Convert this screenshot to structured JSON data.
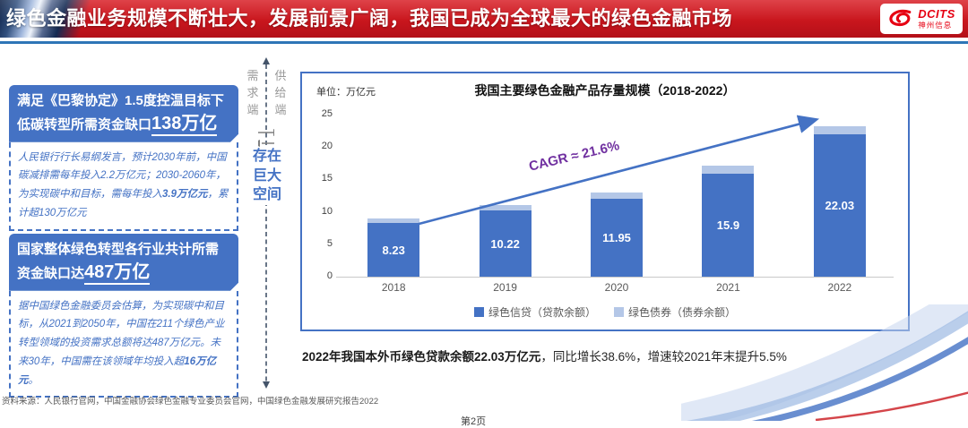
{
  "banner": {
    "title": "绿色金融业务规模不断壮大，发展前景广阔，我国已成为全球最大的绿色金融市场",
    "logo": {
      "name": "DCITS",
      "subname": "神州信息"
    }
  },
  "left_panel": {
    "boxes": [
      {
        "header_text": "满足《巴黎协定》1.5度控温目标下低碳转型所需资金缺口",
        "header_highlight": "138万亿",
        "body_segments": [
          {
            "text": "人民银行行长易纲发言，预计2030年前，中国碳减排需每年投入2.2万亿元；2030-2060年，为实现碳中和目标，需每年投入",
            "bold": false
          },
          {
            "text": "3.9万亿元",
            "bold": true
          },
          {
            "text": "，累计超130万亿元",
            "bold": false
          }
        ]
      },
      {
        "header_text": "国家整体绿色转型各行业共计所需资金缺口达",
        "header_highlight": "487万亿",
        "body_segments": [
          {
            "text": "据中国绿色金融委员会估算，为实现碳中和目标，从2021到2050年，中国在211个绿色产业转型领域的投资需求总额将达487万亿元。未来30年，中国需在该领域年均投入超",
            "bold": false
          },
          {
            "text": "16万亿元",
            "bold": true
          },
          {
            "text": "。",
            "bold": false
          }
        ]
      }
    ]
  },
  "middle": {
    "demand_label": "需求端",
    "supply_label": "供给端",
    "gap_lines": [
      "存在",
      "巨大",
      "空间"
    ]
  },
  "chart_data": {
    "type": "bar",
    "stacked": true,
    "title": "我国主要绿色金融产品存量规模（2018-2022）",
    "unit_label": "单位：万亿元",
    "categories": [
      "2018",
      "2019",
      "2020",
      "2021",
      "2022"
    ],
    "series": [
      {
        "name": "绿色信贷（贷款余额）",
        "color": "#4472C4",
        "values": [
          8.23,
          10.22,
          11.95,
          15.9,
          22.03
        ],
        "labels": [
          "8.23",
          "10.22",
          "11.95",
          "15.9",
          "22.03"
        ]
      },
      {
        "name": "绿色债券（债券余额）",
        "color": "#B4C7E7",
        "values": [
          0.7,
          0.9,
          1.0,
          1.2,
          1.2
        ]
      }
    ],
    "ylim": [
      0,
      25
    ],
    "yticks": [
      0,
      5,
      10,
      15,
      20,
      25
    ],
    "grid": false,
    "legend_position": "bottom",
    "annotation": {
      "text": "CAGR ≈ 21.6%",
      "color": "#7030A0"
    }
  },
  "summary_segments": [
    {
      "text": "2022年我国本外币绿色贷款余额22.03万亿元",
      "bold": true
    },
    {
      "text": "，同比增长38.6%，增速较2021年末提升5.5%",
      "bold": false
    }
  ],
  "footer": {
    "source": "资料来源：人民银行官网，中国金融协会绿色金融专业委员会官网，中国绿色金融发展研究报告2022"
  },
  "page_label": "第2页",
  "colors": {
    "accent_blue": "#4472C4",
    "light_blue": "#B4C7E7",
    "banner_red": "#C9161D",
    "rule_blue": "#2E75B6",
    "cagr_purple": "#7030A0"
  }
}
